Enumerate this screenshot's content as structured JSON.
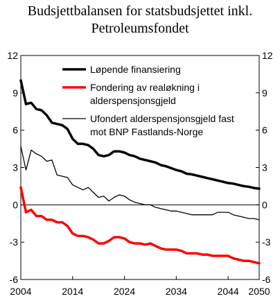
{
  "chart_data": {
    "type": "line",
    "title": [
      "Budsjettbalansen for statsbudsjettet inkl.",
      "Petroleumsfondet"
    ],
    "xlabel": "",
    "ylabel": "",
    "xlim": [
      2004,
      2050
    ],
    "ylim": [
      -6,
      12
    ],
    "yticks": [
      -6,
      -3,
      0,
      3,
      6,
      9,
      12
    ],
    "ytick_labels": [
      "-6",
      "-3",
      "0",
      "3",
      "6",
      "9",
      "12"
    ],
    "xticks": [
      2004,
      2014,
      2024,
      2034,
      2044,
      2050
    ],
    "xtick_labels": [
      "2004",
      "2014",
      "2024",
      "2034",
      "2044",
      "2050"
    ],
    "secondary_y_axis": true,
    "grid": false,
    "legend_position": "top-right (inside)",
    "series": [
      {
        "name": "Løpende finansiering",
        "color": "#000000",
        "width": "thick",
        "x": [
          2004,
          2005,
          2006,
          2007,
          2008,
          2009,
          2010,
          2011,
          2012,
          2013,
          2014,
          2015,
          2016,
          2017,
          2018,
          2019,
          2020,
          2021,
          2022,
          2023,
          2024,
          2025,
          2026,
          2027,
          2028,
          2029,
          2030,
          2031,
          2032,
          2033,
          2034,
          2035,
          2036,
          2037,
          2038,
          2039,
          2040,
          2041,
          2042,
          2043,
          2044,
          2045,
          2046,
          2047,
          2048,
          2049,
          2050
        ],
        "y": [
          10.0,
          8.1,
          8.2,
          7.7,
          7.6,
          7.2,
          6.6,
          6.5,
          6.4,
          6.1,
          5.3,
          4.9,
          4.9,
          4.8,
          4.5,
          4.0,
          3.9,
          4.0,
          4.3,
          4.3,
          4.2,
          4.0,
          3.9,
          3.7,
          3.6,
          3.5,
          3.4,
          3.2,
          3.1,
          2.95,
          2.8,
          2.7,
          2.5,
          2.45,
          2.35,
          2.25,
          2.15,
          2.05,
          1.95,
          1.85,
          1.75,
          1.7,
          1.6,
          1.5,
          1.45,
          1.35,
          1.3
        ]
      },
      {
        "name": "Fondering av realøkning i alderspensjonsgjeld",
        "color": "#ff0000",
        "width": "thick",
        "x": [
          2004,
          2005,
          2006,
          2007,
          2008,
          2009,
          2010,
          2011,
          2012,
          2013,
          2014,
          2015,
          2016,
          2017,
          2018,
          2019,
          2020,
          2021,
          2022,
          2023,
          2024,
          2025,
          2026,
          2027,
          2028,
          2029,
          2030,
          2031,
          2032,
          2033,
          2034,
          2035,
          2036,
          2037,
          2038,
          2039,
          2040,
          2041,
          2042,
          2043,
          2044,
          2045,
          2046,
          2047,
          2048,
          2049,
          2050
        ],
        "y": [
          1.4,
          -0.6,
          -0.4,
          -0.9,
          -0.9,
          -1.2,
          -1.2,
          -1.4,
          -1.4,
          -1.7,
          -2.3,
          -2.5,
          -2.5,
          -2.6,
          -2.8,
          -3.1,
          -3.1,
          -2.9,
          -2.6,
          -2.6,
          -2.7,
          -3.0,
          -3.1,
          -3.1,
          -3.2,
          -3.1,
          -3.3,
          -3.5,
          -3.6,
          -3.6,
          -3.6,
          -3.7,
          -3.9,
          -3.9,
          -3.9,
          -4.0,
          -4.0,
          -4.1,
          -4.1,
          -4.1,
          -4.1,
          -4.3,
          -4.4,
          -4.5,
          -4.5,
          -4.6,
          -4.7
        ]
      },
      {
        "name": "Ufondert alderspensjonsgjeld fast mot BNP Fastlands-Norge",
        "color": "#000000",
        "width": "thin",
        "x": [
          2004,
          2005,
          2006,
          2007,
          2008,
          2009,
          2010,
          2011,
          2012,
          2013,
          2014,
          2015,
          2016,
          2017,
          2018,
          2019,
          2020,
          2021,
          2022,
          2023,
          2024,
          2025,
          2026,
          2027,
          2028,
          2029,
          2030,
          2031,
          2032,
          2033,
          2034,
          2035,
          2036,
          2037,
          2038,
          2039,
          2040,
          2041,
          2042,
          2043,
          2044,
          2045,
          2046,
          2047,
          2048,
          2049,
          2050
        ],
        "y": [
          4.7,
          2.8,
          4.4,
          4.1,
          3.9,
          3.5,
          3.6,
          2.4,
          2.3,
          2.2,
          1.6,
          1.4,
          1.2,
          1.4,
          1.0,
          0.6,
          0.7,
          0.3,
          0.6,
          0.8,
          0.7,
          0.4,
          0.2,
          0.1,
          0.0,
          0.0,
          -0.2,
          -0.3,
          -0.4,
          -0.5,
          -0.5,
          -0.6,
          -0.7,
          -0.8,
          -0.8,
          -0.8,
          -0.8,
          -0.8,
          -0.6,
          -0.6,
          -0.6,
          -0.8,
          -0.9,
          -1.0,
          -1.1,
          -1.1,
          -1.2
        ]
      }
    ]
  }
}
